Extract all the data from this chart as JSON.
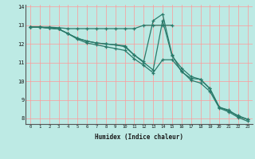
{
  "title": "",
  "xlabel": "Humidex (Indice chaleur)",
  "ylabel": "",
  "background_color": "#bdeae4",
  "grid_color": "#ff9999",
  "line_color": "#2a7a6a",
  "xlim": [
    -0.5,
    23.5
  ],
  "ylim": [
    7.7,
    14.1
  ],
  "xticks": [
    0,
    1,
    2,
    3,
    4,
    5,
    6,
    7,
    8,
    9,
    10,
    11,
    12,
    13,
    14,
    15,
    16,
    17,
    18,
    19,
    20,
    21,
    22,
    23
  ],
  "yticks": [
    8,
    9,
    10,
    11,
    12,
    13,
    14
  ],
  "series": [
    [
      12.9,
      12.9,
      12.9,
      12.87,
      12.82,
      12.82,
      12.82,
      12.82,
      12.82,
      12.82,
      12.82,
      12.82,
      13.0,
      13.0,
      13.0,
      13.0,
      null,
      null,
      null,
      null,
      null,
      null,
      null,
      null
    ],
    [
      12.9,
      12.9,
      12.85,
      12.8,
      12.55,
      12.3,
      12.15,
      12.05,
      12.0,
      11.95,
      11.9,
      11.4,
      11.05,
      13.25,
      13.6,
      11.4,
      10.5,
      10.15,
      10.1,
      9.6,
      8.6,
      8.45,
      8.1,
      7.95
    ],
    [
      12.9,
      12.9,
      12.85,
      12.8,
      12.55,
      12.3,
      12.15,
      12.05,
      12.0,
      11.95,
      11.85,
      11.4,
      11.0,
      10.6,
      13.25,
      11.35,
      10.7,
      10.25,
      10.1,
      9.6,
      8.6,
      8.4,
      8.15,
      7.95
    ],
    [
      12.9,
      12.9,
      12.85,
      12.8,
      12.55,
      12.25,
      12.05,
      11.95,
      11.85,
      11.75,
      11.65,
      11.2,
      10.85,
      10.45,
      11.15,
      11.15,
      10.55,
      10.05,
      9.9,
      9.45,
      8.55,
      8.35,
      8.05,
      7.85
    ]
  ]
}
